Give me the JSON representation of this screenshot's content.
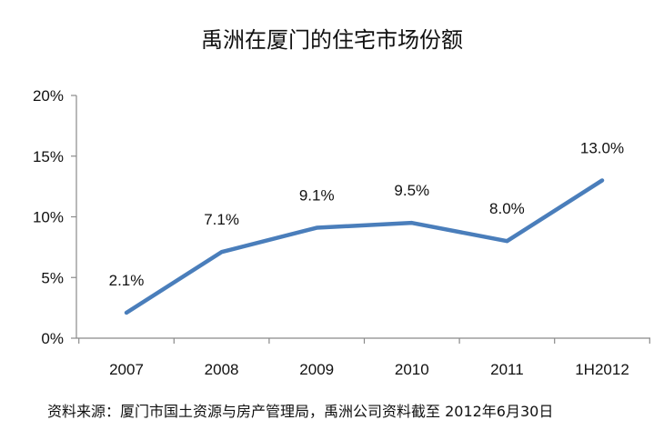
{
  "chart_data": {
    "type": "line",
    "title": "禹洲在厦门的住宅市场份额",
    "categories": [
      "2007",
      "2008",
      "2009",
      "2010",
      "2011",
      "1H2012"
    ],
    "series": [
      {
        "values": [
          2.1,
          7.1,
          9.1,
          9.5,
          8.0,
          13.0
        ],
        "labels": [
          "2.1%",
          "7.1%",
          "9.1%",
          "9.5%",
          "8.0%",
          "13.0%"
        ]
      }
    ],
    "y_ticks": [
      "0%",
      "5%",
      "10%",
      "15%",
      "20%"
    ],
    "ylim": [
      0,
      20
    ],
    "grid": false,
    "legend": "none",
    "line_color": "#4a7ebb"
  },
  "source_note": "资料来源：厦门市国土资源与房产管理局，禹洲公司资料截至 2012年6月30日"
}
